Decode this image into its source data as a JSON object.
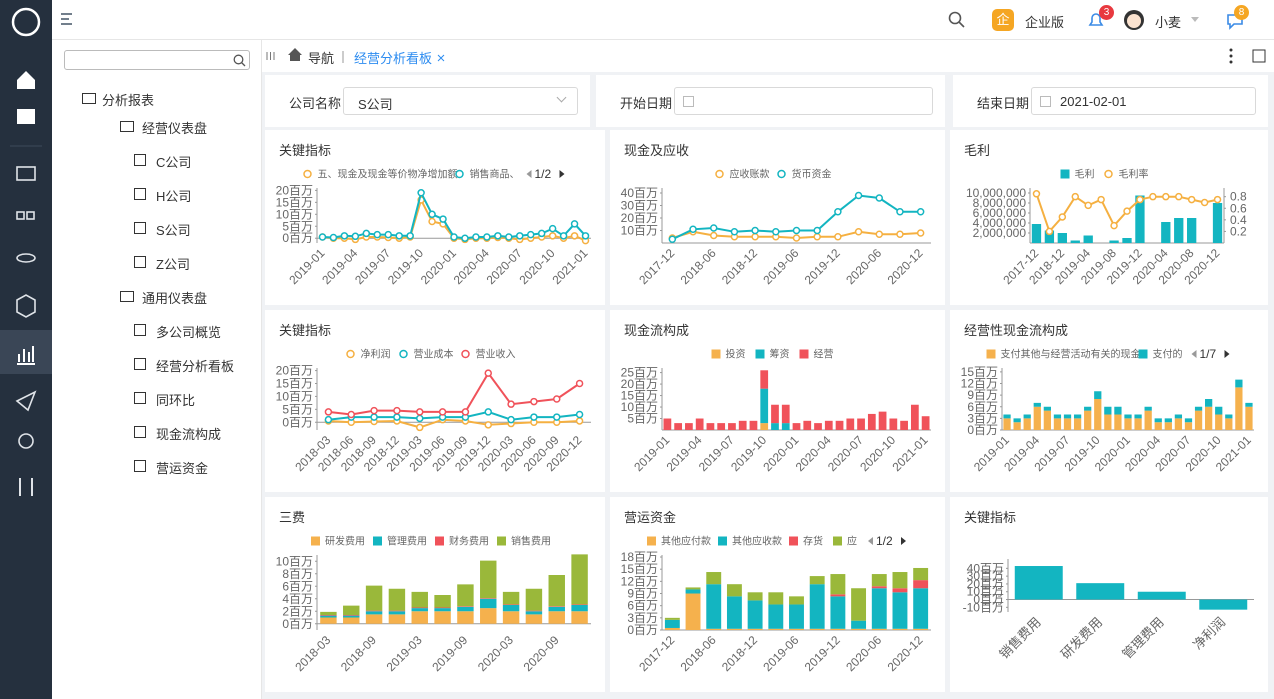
{
  "topbar": {
    "edition_badge": "企",
    "edition": "企业版",
    "notify_count": "3",
    "user": "小麦",
    "message_count": "8"
  },
  "tree": {
    "label": "分析报表",
    "groups": [
      {
        "label": "经营仪表盘",
        "items": [
          "C公司",
          "H公司",
          "S公司",
          "Z公司"
        ]
      },
      {
        "label": "通用仪表盘",
        "items": [
          "多公司概览",
          "经营分析看板",
          "同环比",
          "现金流构成",
          "营运资金"
        ]
      }
    ]
  },
  "breadcrumb": {
    "home": "导航",
    "tab": "经营分析看板"
  },
  "filters": [
    {
      "label": "公司名称",
      "value": "S公司"
    },
    {
      "label": "开始日期"
    },
    {
      "label": "结束日期",
      "value": "2021-02-01"
    }
  ],
  "chart_data": [
    {
      "type": "line",
      "title": "关键指标",
      "legend_pager": "1/2",
      "categories": [
        "2019-01",
        null,
        null,
        "2019-04",
        null,
        null,
        "2019-07",
        null,
        null,
        "2019-10",
        null,
        null,
        "2020-01",
        null,
        null,
        "2020-04",
        null,
        null,
        "2020-07",
        null,
        null,
        "2020-10",
        null,
        null,
        "2021-01"
      ],
      "series": [
        {
          "name": "五、现金及现金等价物净增加额",
          "color": "#f5b041",
          "values": [
            0.5,
            0,
            0,
            -0.5,
            0.5,
            0.5,
            0.3,
            0,
            0.5,
            16,
            7,
            6,
            0,
            -0.5,
            0,
            0,
            0.3,
            0,
            -0.5,
            0,
            0.5,
            1,
            0,
            1,
            -1
          ]
        },
        {
          "name": "销售商品、",
          "color": "#13b5c1",
          "values": [
            0.5,
            0.3,
            1,
            0.8,
            2,
            1.5,
            1.5,
            1,
            1,
            19,
            10,
            8,
            0.5,
            0,
            0.5,
            0.5,
            1,
            0.5,
            1,
            1.5,
            2,
            4,
            1,
            6,
            1
          ]
        }
      ],
      "ylim": [
        -2,
        21
      ],
      "yticks": [
        {
          "value": 0,
          "label": "0百万"
        },
        {
          "value": 5,
          "label": "5百万"
        },
        {
          "value": 10,
          "label": "10百万"
        },
        {
          "value": 15,
          "label": "15百万"
        },
        {
          "value": 20,
          "label": "20百万"
        }
      ]
    },
    {
      "type": "line",
      "title": "现金及应收",
      "categories": [
        "2017-12",
        null,
        "2018-06",
        null,
        "2018-12",
        null,
        "2019-06",
        null,
        "2019-12",
        null,
        "2020-06",
        null,
        "2020-12"
      ],
      "series": [
        {
          "name": "应收账款",
          "color": "#f5b041",
          "values": [
            4,
            9,
            6,
            5,
            5,
            5,
            4,
            5,
            5,
            9,
            7,
            7,
            8
          ]
        },
        {
          "name": "货币资金",
          "color": "#13b5c1",
          "values": [
            3,
            11,
            12,
            9,
            10,
            9,
            10,
            10,
            25,
            38,
            36,
            25,
            25
          ]
        }
      ],
      "ylim": [
        0,
        44
      ],
      "yticks": [
        {
          "value": 10,
          "label": "10百万"
        },
        {
          "value": 20,
          "label": "20百万"
        },
        {
          "value": 30,
          "label": "30百万"
        },
        {
          "value": 40,
          "label": "40百万"
        }
      ]
    },
    {
      "type": "combo",
      "title": "毛利",
      "categories": [
        "2017-12",
        null,
        "2018-12",
        null,
        "2019-04",
        null,
        "2019-08",
        null,
        "2019-12",
        null,
        "2020-04",
        null,
        "2020-08",
        null,
        "2020-12"
      ],
      "series": [
        {
          "name": "毛利",
          "type": "bar",
          "color": "#13b5c1",
          "values": [
            3800000,
            2500000,
            2000000,
            500000,
            1500000,
            0,
            500000,
            1000000,
            9500000,
            0,
            4200000,
            5000000,
            5000000,
            0,
            8000000
          ]
        },
        {
          "name": "毛利率",
          "type": "line",
          "axis": "y2",
          "color": "#f5b041",
          "values": [
            0.85,
            0.2,
            0.45,
            0.8,
            0.65,
            0.75,
            0.3,
            0.55,
            0.75,
            0.8,
            0.8,
            0.8,
            0.75,
            0.7,
            0.75
          ]
        }
      ],
      "ylim": [
        0,
        11000000
      ],
      "yticks": [
        {
          "value": 2000000,
          "label": "2,000,000"
        },
        {
          "value": 4000000,
          "label": "4,000,000"
        },
        {
          "value": 6000000,
          "label": "6,000,000"
        },
        {
          "value": 8000000,
          "label": "8,000,000"
        },
        {
          "value": 10000000,
          "label": "10,000,000"
        }
      ],
      "y2lim": [
        0,
        0.95
      ],
      "y2ticks": [
        0.2,
        0.4,
        0.6,
        0.8
      ]
    },
    {
      "type": "line",
      "title": "关键指标",
      "categories": [
        "2018-03",
        "2018-06",
        "2018-09",
        "2018-12",
        "2019-03",
        "2019-06",
        "2019-09",
        "2019-12",
        "2020-03",
        "2020-06",
        "2020-09",
        "2020-12"
      ],
      "series": [
        {
          "name": "净利润",
          "color": "#f5b041",
          "values": [
            0.5,
            0,
            0.3,
            0.5,
            -2,
            1,
            0.5,
            -1,
            -0.5,
            0,
            0,
            0.5
          ]
        },
        {
          "name": "营业成本",
          "color": "#13b5c1",
          "values": [
            1,
            2,
            2,
            2,
            1.5,
            2,
            2,
            4,
            1,
            2,
            2,
            3
          ]
        },
        {
          "name": "营业收入",
          "color": "#f0525a",
          "values": [
            4,
            3,
            4.5,
            4.5,
            4,
            4,
            4,
            19,
            7,
            8,
            9,
            15
          ]
        }
      ],
      "ylim": [
        -3,
        21
      ],
      "yticks": [
        {
          "value": 0,
          "label": "0百万"
        },
        {
          "value": 5,
          "label": "5百万"
        },
        {
          "value": 10,
          "label": "10百万"
        },
        {
          "value": 15,
          "label": "15百万"
        },
        {
          "value": 20,
          "label": "20百万"
        }
      ]
    },
    {
      "type": "bar",
      "title": "现金流构成",
      "categories": [
        "2019-01",
        null,
        null,
        "2019-04",
        null,
        null,
        "2019-07",
        null,
        null,
        "2019-10",
        null,
        null,
        "2020-01",
        null,
        null,
        "2020-04",
        null,
        null,
        "2020-07",
        null,
        null,
        "2020-10",
        null,
        null,
        "2021-01"
      ],
      "series": [
        {
          "name": "投资",
          "color": "#f5b14d",
          "values": [
            0,
            0,
            0,
            0,
            0,
            0,
            0,
            0,
            0,
            3,
            0,
            0,
            0,
            0,
            0,
            0,
            0,
            0,
            0,
            0,
            0,
            0,
            0,
            0,
            0
          ]
        },
        {
          "name": "筹资",
          "color": "#13b5c1",
          "values": [
            0,
            0,
            0,
            0,
            0,
            0,
            0,
            0,
            0,
            15,
            3,
            3,
            0,
            0,
            0,
            0,
            0,
            0,
            0,
            0,
            0,
            0,
            0,
            0,
            0
          ]
        },
        {
          "name": "经营",
          "color": "#f0525a",
          "values": [
            5,
            3,
            3,
            5,
            3,
            3,
            3,
            4,
            4,
            8,
            8,
            8,
            3,
            4,
            3,
            4,
            4,
            5,
            5,
            7,
            8,
            5,
            4,
            11,
            6
          ]
        }
      ],
      "ylim": [
        0,
        27
      ],
      "yticks": [
        {
          "value": 5,
          "label": "5百万"
        },
        {
          "value": 10,
          "label": "10百万"
        },
        {
          "value": 15,
          "label": "15百万"
        },
        {
          "value": 20,
          "label": "20百万"
        },
        {
          "value": 25,
          "label": "25百万"
        }
      ]
    },
    {
      "type": "bar",
      "title": "经营性现金流构成",
      "legend_pager": "1/7",
      "categories": [
        "2019-01",
        null,
        null,
        "2019-04",
        null,
        null,
        "2019-07",
        null,
        null,
        "2019-10",
        null,
        null,
        "2020-01",
        null,
        null,
        "2020-04",
        null,
        null,
        "2020-07",
        null,
        null,
        "2020-10",
        null,
        null,
        "2021-01"
      ],
      "series": [
        {
          "name": "支付其他与经营活动有关的现金",
          "color": "#f5b14d",
          "values": [
            3,
            2,
            3,
            6,
            5,
            3,
            3,
            3,
            5,
            8,
            4,
            4,
            3,
            3,
            5,
            2,
            2,
            3,
            2,
            5,
            6,
            4,
            3,
            11,
            6
          ]
        },
        {
          "name": "支付的",
          "color": "#13b5c1",
          "values": [
            1,
            1,
            1,
            1,
            1,
            1,
            1,
            1,
            1,
            2,
            2,
            2,
            1,
            1,
            1,
            1,
            1,
            1,
            1,
            1,
            2,
            2,
            1,
            2,
            1
          ]
        }
      ],
      "ylim": [
        0,
        16
      ],
      "yticks": [
        {
          "value": 0,
          "label": "0百万"
        },
        {
          "value": 3,
          "label": "3百万"
        },
        {
          "value": 6,
          "label": "6百万"
        },
        {
          "value": 9,
          "label": "9百万"
        },
        {
          "value": 12,
          "label": "12百万"
        },
        {
          "value": 15,
          "label": "15百万"
        }
      ]
    },
    {
      "type": "bar",
      "title": "三费",
      "categories": [
        "2018-03",
        null,
        "2018-09",
        null,
        "2019-03",
        null,
        "2019-09",
        null,
        "2020-03",
        null,
        "2020-09",
        null
      ],
      "series": [
        {
          "name": "研发费用",
          "color": "#f5b14d",
          "values": [
            1,
            1,
            1.5,
            1.5,
            2,
            2,
            2,
            2.5,
            2,
            1.5,
            2,
            2
          ]
        },
        {
          "name": "管理费用",
          "color": "#13b5c1",
          "values": [
            0.3,
            0.3,
            0.5,
            0.5,
            0.5,
            0.5,
            0.7,
            1.5,
            1,
            0.5,
            0.7,
            1
          ]
        },
        {
          "name": "财务费用",
          "color": "#f0525a",
          "values": [
            0.1,
            0.1,
            0.1,
            0.1,
            0.1,
            0.1,
            0.1,
            0.1,
            0.1,
            0.1,
            0.1,
            0.1
          ]
        },
        {
          "name": "销售费用",
          "color": "#9ab83a",
          "values": [
            0.5,
            1.5,
            4,
            3.5,
            2.5,
            2,
            3.5,
            6,
            2,
            3.5,
            5,
            8
          ]
        }
      ],
      "ylim": [
        -1,
        11
      ],
      "yticks": [
        {
          "value": 0,
          "label": "0百万"
        },
        {
          "value": 2,
          "label": "2百万"
        },
        {
          "value": 4,
          "label": "4百万"
        },
        {
          "value": 6,
          "label": "6百万"
        },
        {
          "value": 8,
          "label": "8百万"
        },
        {
          "value": 10,
          "label": "10百万"
        }
      ]
    },
    {
      "type": "bar",
      "title": "营运资金",
      "legend_pager": "1/2",
      "categories": [
        "2017-12",
        null,
        "2018-06",
        null,
        "2018-12",
        null,
        "2019-06",
        null,
        "2019-12",
        null,
        "2020-06",
        null,
        "2020-12"
      ],
      "series": [
        {
          "name": "其他应付款",
          "color": "#f5b14d",
          "values": [
            0.5,
            9,
            0.3,
            0.3,
            0.3,
            0.3,
            0.3,
            0.3,
            0.3,
            0.3,
            0.3,
            0.3,
            0.3
          ]
        },
        {
          "name": "其他应收款",
          "color": "#13b5c1",
          "values": [
            2,
            1,
            11,
            8,
            7,
            6,
            6,
            11,
            8,
            2,
            10,
            9,
            10
          ]
        },
        {
          "name": "存货",
          "color": "#f0525a",
          "values": [
            0,
            0,
            0,
            0,
            0,
            0,
            0,
            0,
            0.5,
            0,
            0.5,
            1,
            2
          ]
        },
        {
          "name": "应",
          "color": "#9ab83a",
          "values": [
            0.5,
            0.5,
            3,
            3,
            2,
            3,
            2,
            2,
            5,
            8,
            3,
            4,
            3
          ]
        }
      ],
      "ylim": [
        0,
        18.5
      ],
      "yticks": [
        {
          "value": 0,
          "label": "0百万"
        },
        {
          "value": 3,
          "label": "3百万"
        },
        {
          "value": 6,
          "label": "6百万"
        },
        {
          "value": 9,
          "label": "9百万"
        },
        {
          "value": 12,
          "label": "12百万"
        },
        {
          "value": 15,
          "label": "15百万"
        },
        {
          "value": 18,
          "label": "18百万"
        }
      ]
    },
    {
      "type": "bar",
      "title": "关键指标",
      "categories": [
        "销售费用",
        "研发费用",
        "管理费用",
        "净利润"
      ],
      "series": [
        {
          "color": "#13b5c1",
          "values": [
            43,
            21,
            10,
            -13
          ]
        }
      ],
      "ylim": [
        -16,
        52
      ],
      "yticks": [
        {
          "value": -10,
          "label": "-10百万"
        },
        {
          "value": 0,
          "label": "0百万"
        },
        {
          "value": 10,
          "label": "10百万"
        },
        {
          "value": 20,
          "label": "20百万"
        },
        {
          "value": 30,
          "label": "30百万"
        },
        {
          "value": 40,
          "label": "40百万"
        }
      ]
    }
  ]
}
